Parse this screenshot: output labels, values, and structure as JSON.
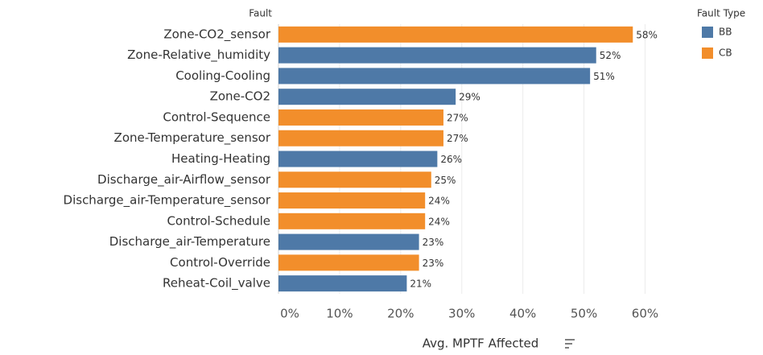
{
  "chart_data": {
    "type": "bar",
    "orientation": "horizontal",
    "row_header": "Fault",
    "x_label": "Avg. MPTF Affected",
    "categories": [
      "Zone-CO2_sensor",
      "Zone-Relative_humidity",
      "Cooling-Cooling",
      "Zone-CO2",
      "Control-Sequence",
      "Zone-Temperature_sensor",
      "Heating-Heating",
      "Discharge_air-Airflow_sensor",
      "Discharge_air-Temperature_sensor",
      "Control-Schedule",
      "Discharge_air-Temperature",
      "Control-Override",
      "Reheat-Coil_valve"
    ],
    "fault_types": [
      "CB",
      "BB",
      "BB",
      "BB",
      "CB",
      "CB",
      "BB",
      "CB",
      "CB",
      "CB",
      "BB",
      "CB",
      "BB"
    ],
    "values": [
      58,
      52,
      51,
      29,
      27,
      27,
      26,
      25,
      24,
      24,
      23,
      23,
      21
    ],
    "value_labels": [
      "58%",
      "52%",
      "51%",
      "29%",
      "27%",
      "27%",
      "26%",
      "25%",
      "24%",
      "24%",
      "23%",
      "23%",
      "21%"
    ],
    "legend": {
      "title": "Fault Type",
      "items": [
        {
          "name": "BB",
          "color": "#4e79a7"
        },
        {
          "name": "CB",
          "color": "#f28e2b"
        }
      ]
    },
    "xlim": [
      0,
      66
    ],
    "xticks": [
      {
        "value": 0,
        "label": "0%"
      },
      {
        "value": 10,
        "label": "10%"
      },
      {
        "value": 20,
        "label": "20%"
      },
      {
        "value": 30,
        "label": "30%"
      },
      {
        "value": 40,
        "label": "40%"
      },
      {
        "value": 50,
        "label": "50%"
      },
      {
        "value": 60,
        "label": "60%"
      }
    ],
    "grid": true
  }
}
